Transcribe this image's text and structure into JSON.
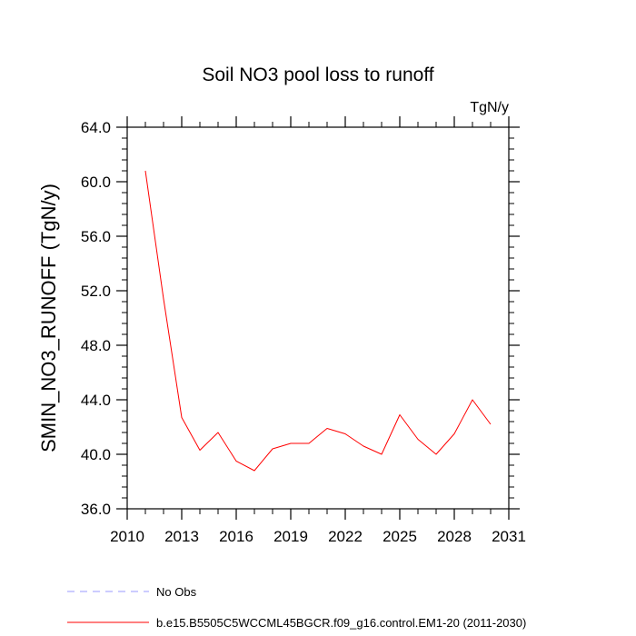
{
  "chart_data": {
    "type": "line",
    "title": "Soil NO3 pool loss to runoff",
    "units_label": "TgN/y",
    "xlabel": "",
    "ylabel": "SMIN_NO3_RUNOFF  (TgN/y)",
    "xlim": [
      2010,
      2031
    ],
    "ylim": [
      36.0,
      64.0
    ],
    "x_tick_values": [
      2010,
      2013,
      2016,
      2019,
      2022,
      2025,
      2028,
      2031
    ],
    "x_tick_labels": [
      "2010",
      "2013",
      "2016",
      "2019",
      "2022",
      "2025",
      "2028",
      "2031"
    ],
    "y_tick_values": [
      36.0,
      40.0,
      44.0,
      48.0,
      52.0,
      56.0,
      60.0,
      64.0
    ],
    "y_tick_labels": [
      "36.0",
      "40.0",
      "44.0",
      "48.0",
      "52.0",
      "56.0",
      "60.0",
      "64.0"
    ],
    "x_minor_step": 1,
    "y_minor_step": 0.8,
    "grid": false,
    "series": [
      {
        "name": "b.e15.B5505C5WCCML45BGCR.f09_g16.control.EM1-20 (2011-2030)",
        "color": "#ff0000",
        "style": "solid",
        "x": [
          2011,
          2012,
          2013,
          2014,
          2015,
          2016,
          2017,
          2018,
          2019,
          2020,
          2021,
          2022,
          2023,
          2024,
          2025,
          2026,
          2027,
          2028,
          2029,
          2030
        ],
        "y": [
          60.8,
          51.4,
          42.7,
          40.3,
          41.6,
          39.5,
          38.8,
          40.4,
          40.8,
          40.8,
          41.9,
          41.5,
          40.6,
          40.0,
          42.9,
          41.1,
          40.0,
          41.5,
          44.0,
          42.2
        ]
      }
    ],
    "legend": [
      {
        "label": "No Obs",
        "color": "#9999ff",
        "style": "dashed"
      },
      {
        "label": "b.e15.B5505C5WCCML45BGCR.f09_g16.control.EM1-20 (2011-2030)",
        "color": "#ff0000",
        "style": "solid"
      }
    ],
    "legend_placement": "bottom-left"
  }
}
